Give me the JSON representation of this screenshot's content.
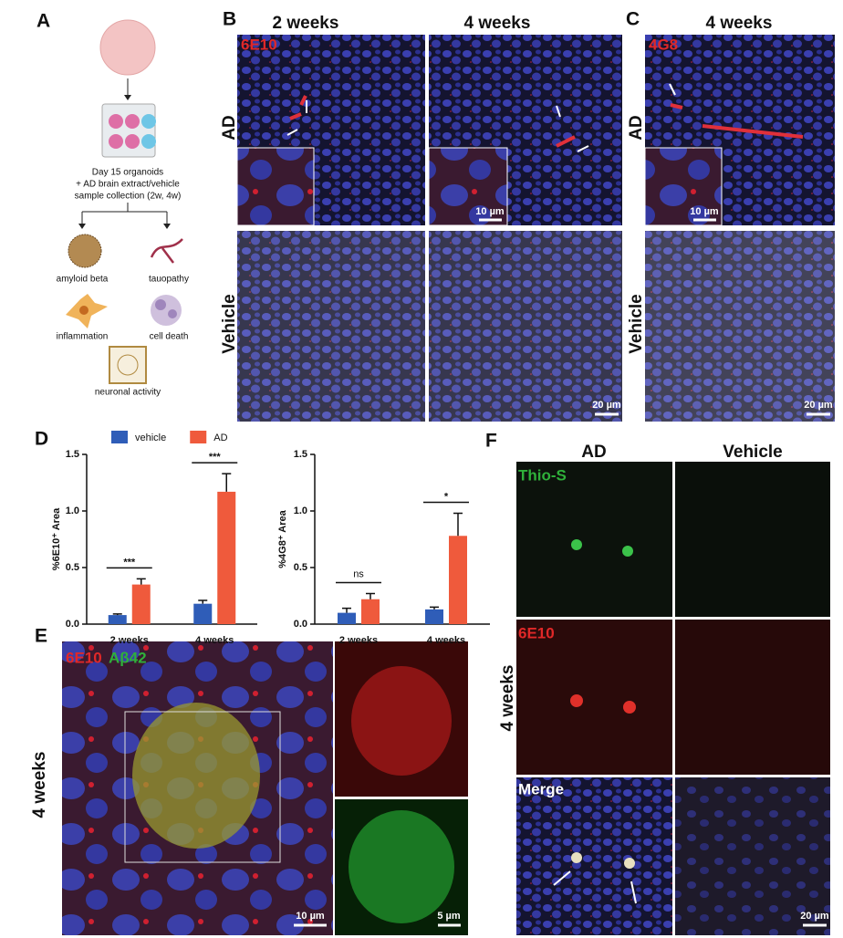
{
  "panels": {
    "a": "A",
    "b": "B",
    "c": "C",
    "d": "D",
    "e": "E",
    "f": "F"
  },
  "panel_a": {
    "lines": [
      "Day 15 organoids",
      "+ AD brain extract/vehicle",
      "sample collection (2w, 4w)"
    ],
    "outcomes": [
      "amyloid beta",
      "tauopathy",
      "inflammation",
      "cell death",
      "neuronal activity"
    ]
  },
  "panel_b": {
    "columns": [
      "2 weeks",
      "4 weeks"
    ],
    "stain": "6E10",
    "rows": [
      "AD",
      "Vehicle"
    ],
    "inset_scale": "10 µm",
    "scale": "20 µm"
  },
  "panel_c": {
    "column": "4 weeks",
    "stain": "4G8",
    "rows": [
      "AD",
      "Vehicle"
    ],
    "inset_scale": "10 µm",
    "scale": "20 µm"
  },
  "panel_e": {
    "stains": [
      "6E10",
      "Aβ42"
    ],
    "row": "4 weeks",
    "scale": "10 µm",
    "inset_scale": "5 µm"
  },
  "panel_f": {
    "columns": [
      "AD",
      "Vehicle"
    ],
    "rows": [
      "Thio-S",
      "6E10",
      "Merge"
    ],
    "row_label": "4 weeks",
    "scale": "20 µm"
  },
  "chart_data": [
    {
      "type": "bar",
      "ylabel": "%6E10⁺ Area",
      "categories": [
        "2 weeks",
        "4 weeks"
      ],
      "series": [
        {
          "name": "vehicle",
          "color": "#2f5db8",
          "values": [
            0.08,
            0.18
          ],
          "errors": [
            0.01,
            0.03
          ]
        },
        {
          "name": "AD",
          "color": "#ef5a3c",
          "values": [
            0.35,
            1.17
          ],
          "errors": [
            0.05,
            0.16
          ]
        }
      ],
      "annotations": [
        "***",
        "***"
      ],
      "ylim": [
        0,
        1.5
      ],
      "yticks": [
        {
          "value": 0,
          "label": "0.0"
        },
        0.5,
        {
          "value": 1,
          "label": "1.0"
        },
        1.5
      ]
    },
    {
      "type": "bar",
      "ylabel": "%4G8⁺ Area",
      "categories": [
        "2 weeks",
        "4 weeks"
      ],
      "series": [
        {
          "color": "#2f5db8",
          "values": [
            0.1,
            0.13
          ],
          "errors": [
            0.04,
            0.02
          ]
        },
        {
          "color": "#ef5a3c",
          "values": [
            0.22,
            0.78
          ],
          "errors": [
            0.05,
            0.2
          ]
        }
      ],
      "annotations": [
        "ns",
        "*"
      ],
      "ylim": [
        0,
        1.5
      ],
      "yticks": [
        {
          "value": 0,
          "label": "0.0"
        },
        0.5,
        {
          "value": 1,
          "label": "1.0"
        },
        1.5
      ]
    }
  ]
}
